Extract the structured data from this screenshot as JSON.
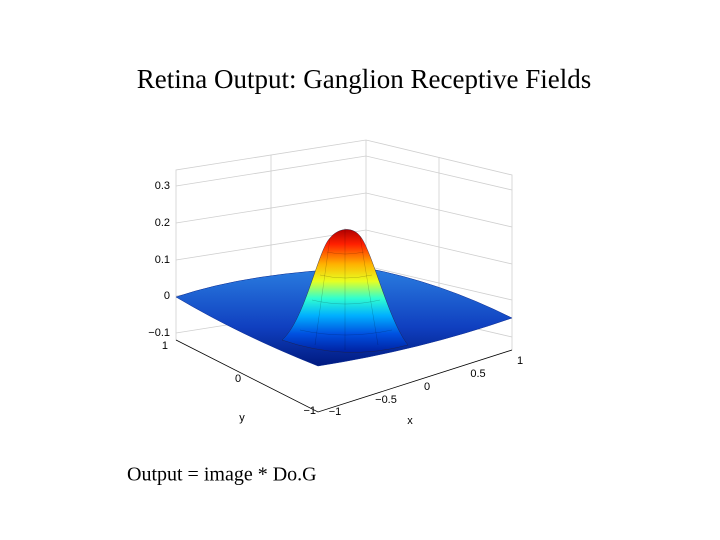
{
  "title": "Retina Output:  Ganglion Receptive Fields",
  "plot": {
    "zticks": [
      "0.3",
      "0.2",
      "0.1",
      "0",
      "−0.1"
    ],
    "yticks": [
      "1",
      "0",
      "−1"
    ],
    "xticks": [
      "−1",
      "−0.5",
      "0",
      "0.5",
      "1"
    ],
    "xlabel": "x",
    "ylabel": "y"
  },
  "caption": "Output  =  image * Do.G"
}
